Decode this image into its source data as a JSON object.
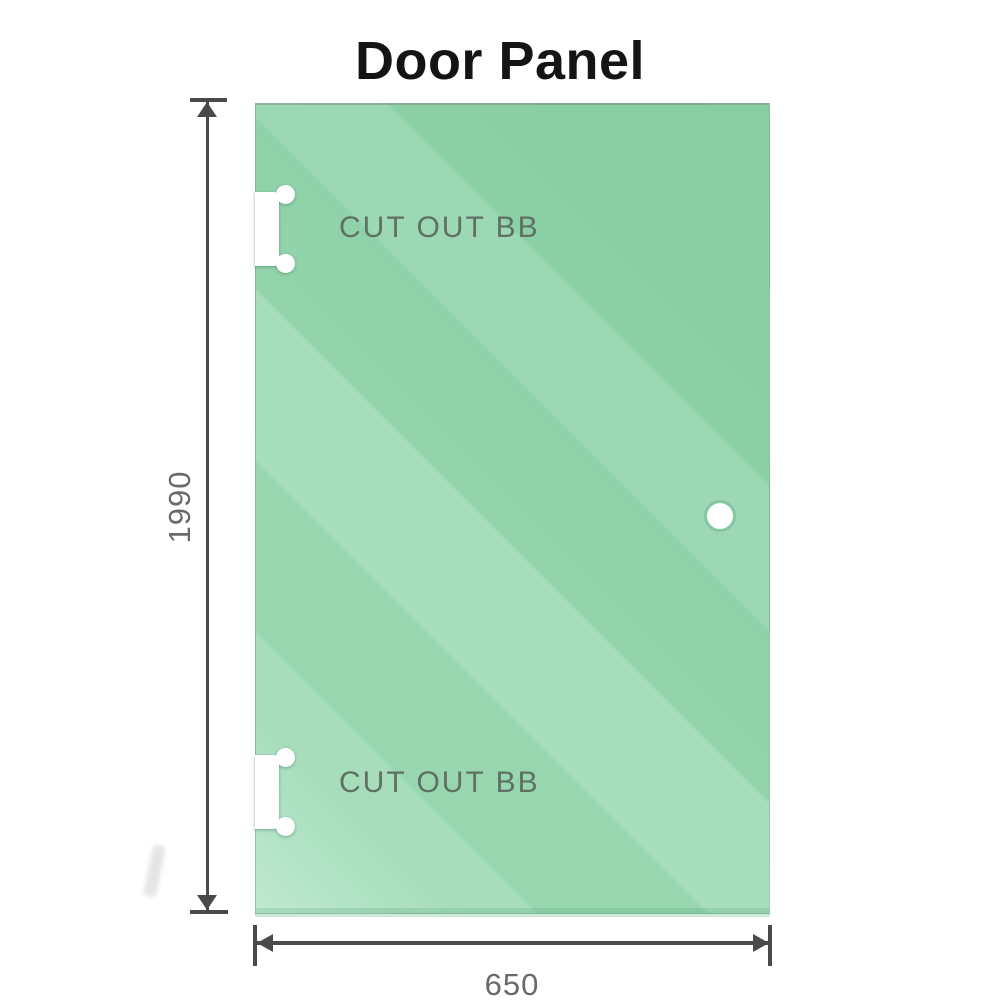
{
  "title": "Door Panel",
  "panel": {
    "cutouts": [
      {
        "label": "CUT OUT BB"
      },
      {
        "label": "CUT OUT BB"
      }
    ],
    "glass": {
      "base_color": "#93d5ae",
      "highlight_color": "#bfe9d1",
      "handle_ring_color": "#85c7a2"
    }
  },
  "dimensions": {
    "height": {
      "value": "1990"
    },
    "width": {
      "value": "650"
    },
    "line_color": "#4a4a4a",
    "text_color": "#6a6a6a"
  }
}
